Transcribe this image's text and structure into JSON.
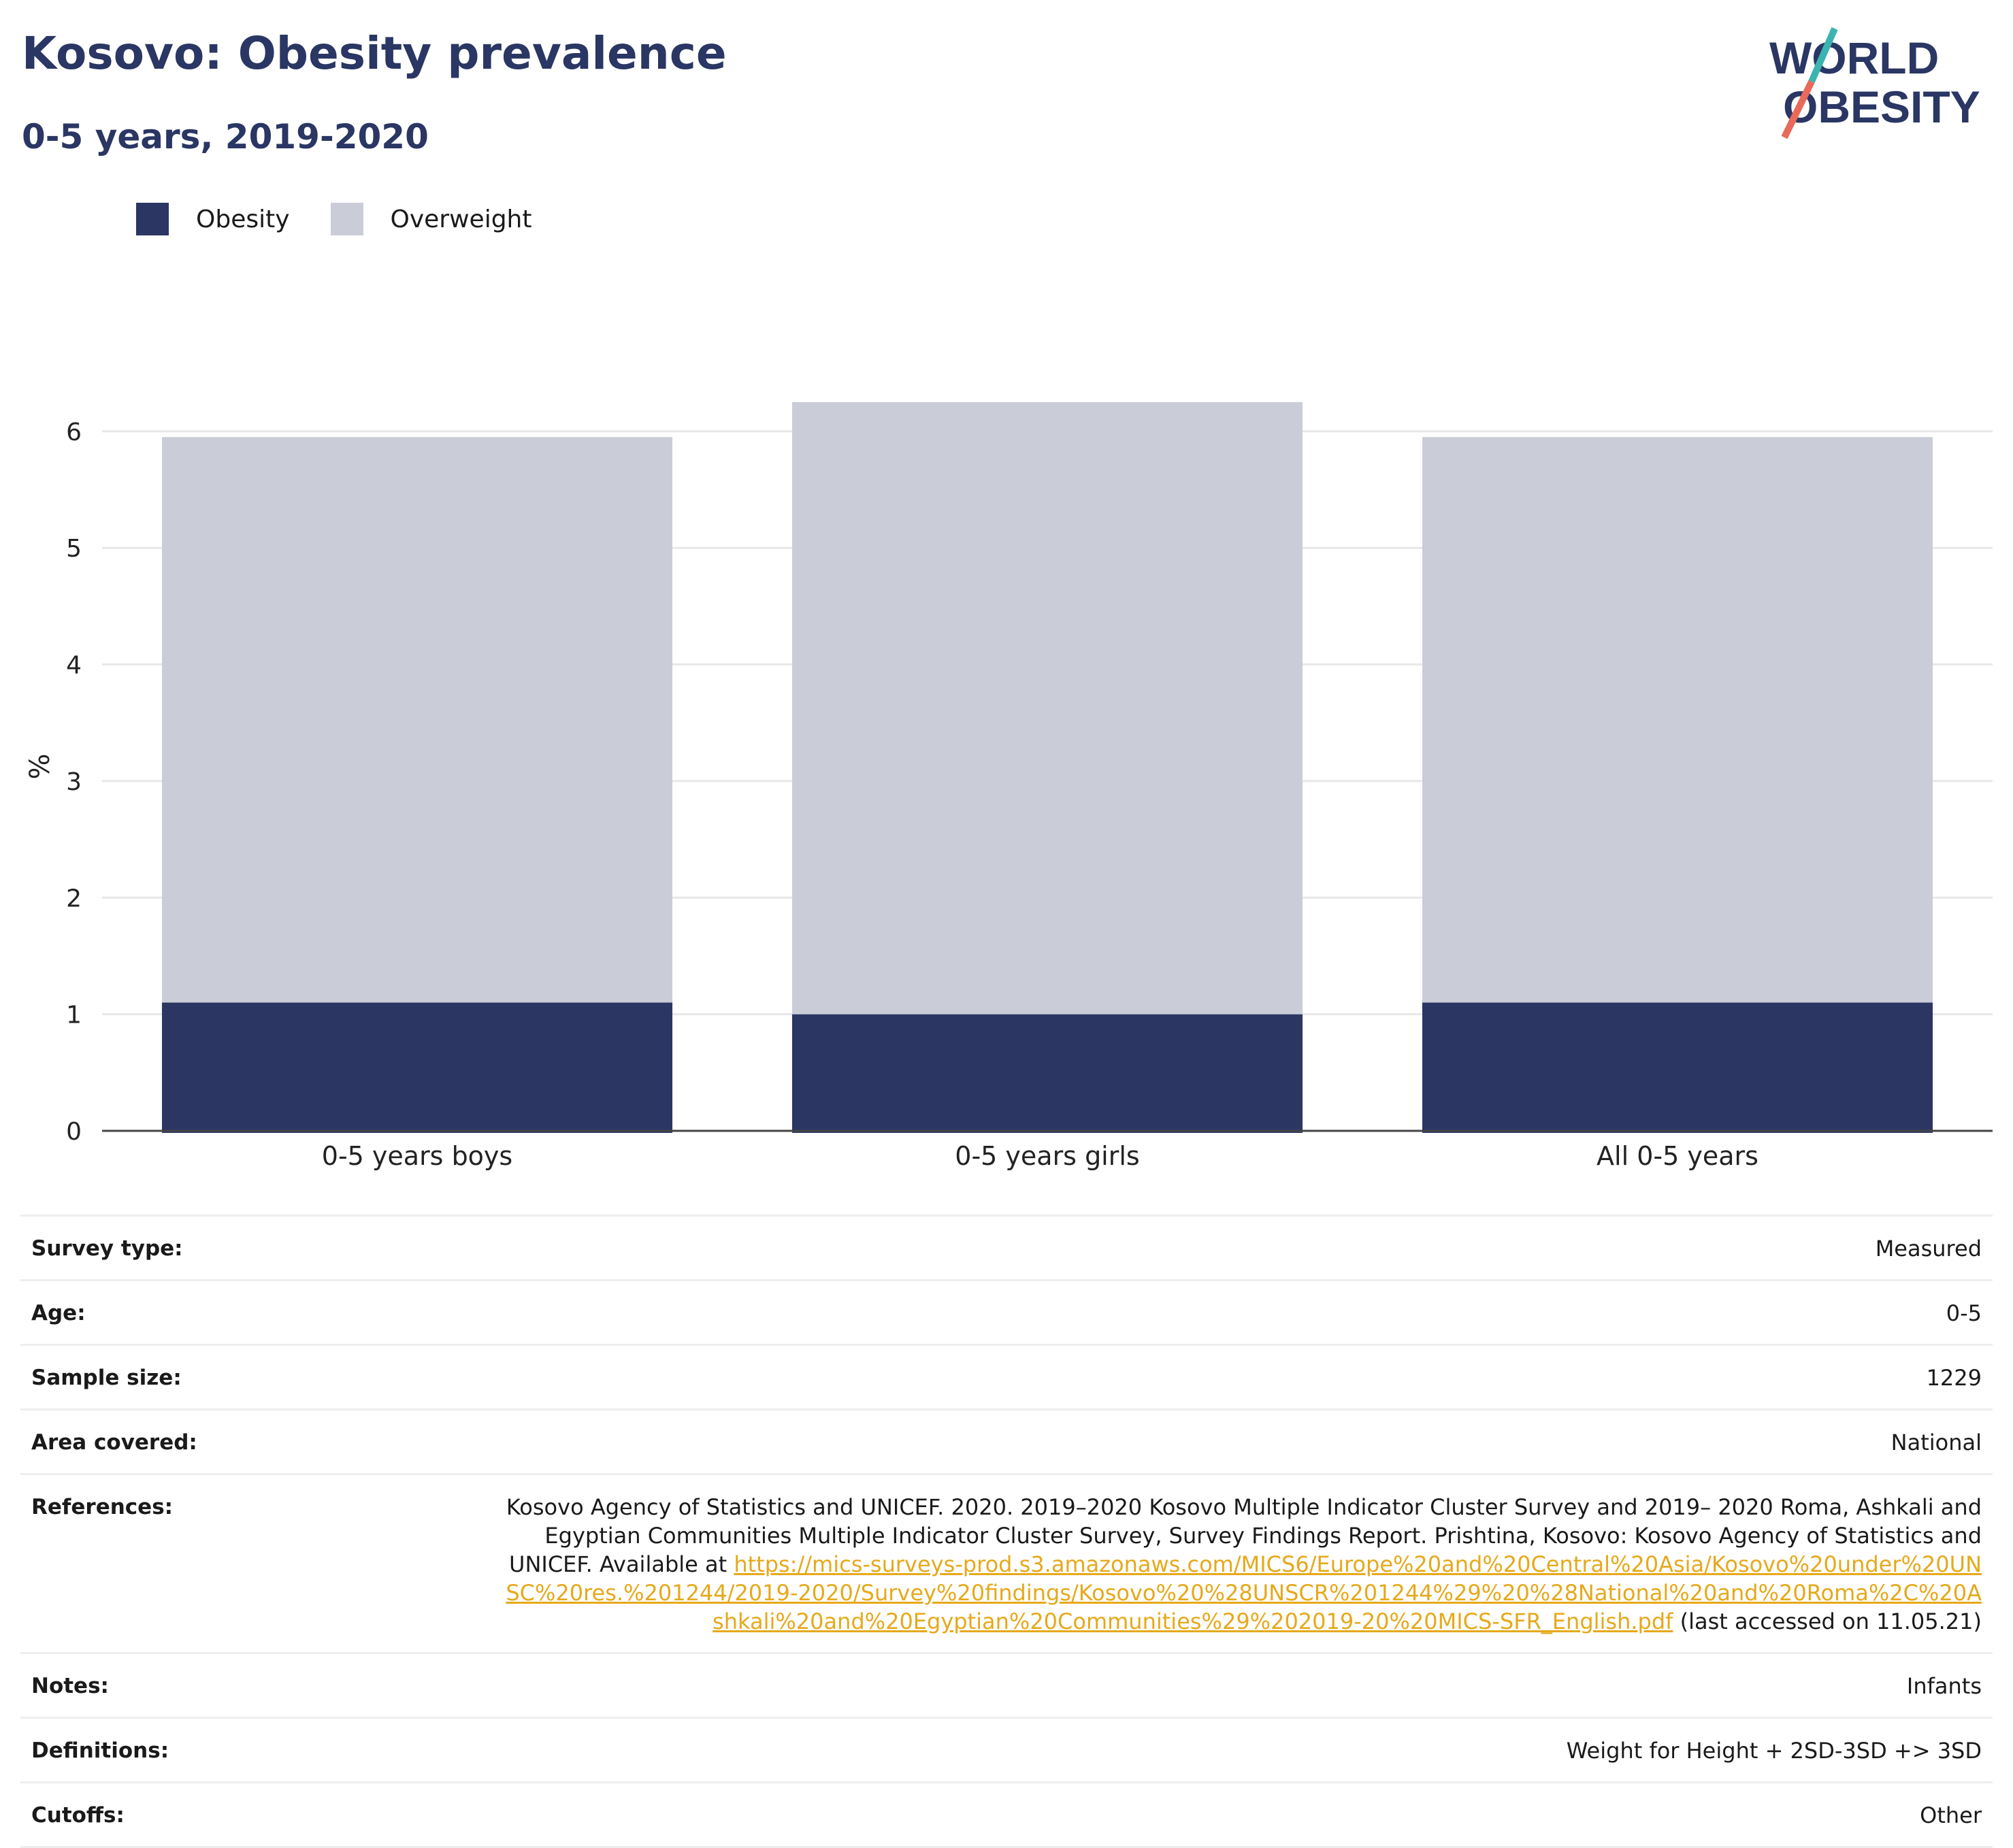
{
  "title": "Kosovo: Obesity prevalence",
  "subtitle": "0-5 years, 2019-2020",
  "logo": {
    "line1": "WORLD",
    "line2": "OBESITY"
  },
  "colors": {
    "obesity": "#2b3663",
    "overweight": "#cacdd8",
    "title": "#2a3663",
    "link": "#e6a91b",
    "grid": "#e8e8e8"
  },
  "chart_data": {
    "type": "bar",
    "stacked": true,
    "categories": [
      "0-5 years boys",
      "0-5 years girls",
      "All 0-5 years"
    ],
    "series": [
      {
        "name": "Obesity",
        "values": [
          1.1,
          1.0,
          1.1
        ]
      },
      {
        "name": "Overweight",
        "values": [
          4.85,
          5.25,
          4.85
        ]
      }
    ],
    "ylabel": "%",
    "ylim": [
      0,
      6.25
    ],
    "yticks": [
      0,
      1,
      2,
      3,
      4,
      5,
      6
    ],
    "grid": true,
    "legend": "top-left"
  },
  "meta": {
    "survey_type": {
      "label": "Survey type:",
      "value": "Measured"
    },
    "age": {
      "label": "Age:",
      "value": "0-5"
    },
    "sample_size": {
      "label": "Sample size:",
      "value": "1229"
    },
    "area": {
      "label": "Area covered:",
      "value": "National"
    },
    "references": {
      "label": "References:",
      "text": "Kosovo Agency of Statistics and UNICEF. 2020. 2019–2020 Kosovo Multiple Indicator Cluster Survey and 2019– 2020 Roma, Ashkali and Egyptian Communities Multiple Indicator Cluster Survey, Survey Findings Report. Prishtina, Kosovo: Kosovo Agency of Statistics and UNICEF. Available at ",
      "link": "https://mics-surveys-prod.s3.amazonaws.com/MICS6/Europe%20and%20Central%20Asia/Kosovo%20under%20UNSC%20res.%201244/2019-2020/Survey%20findings/Kosovo%20%28UNSCR%201244%29%20%28National%20and%20Roma%2C%20Ashkali%20and%20Egyptian%20Communities%29%202019-20%20MICS-SFR_English.pdf",
      "suffix": " (last accessed on 11.05.21)"
    },
    "notes": {
      "label": "Notes:",
      "value": "Infants"
    },
    "definitions": {
      "label": "Definitions:",
      "value": "Weight for Height + 2SD-3SD +> 3SD"
    },
    "cutoffs": {
      "label": "Cutoffs:",
      "value": "Other"
    }
  }
}
